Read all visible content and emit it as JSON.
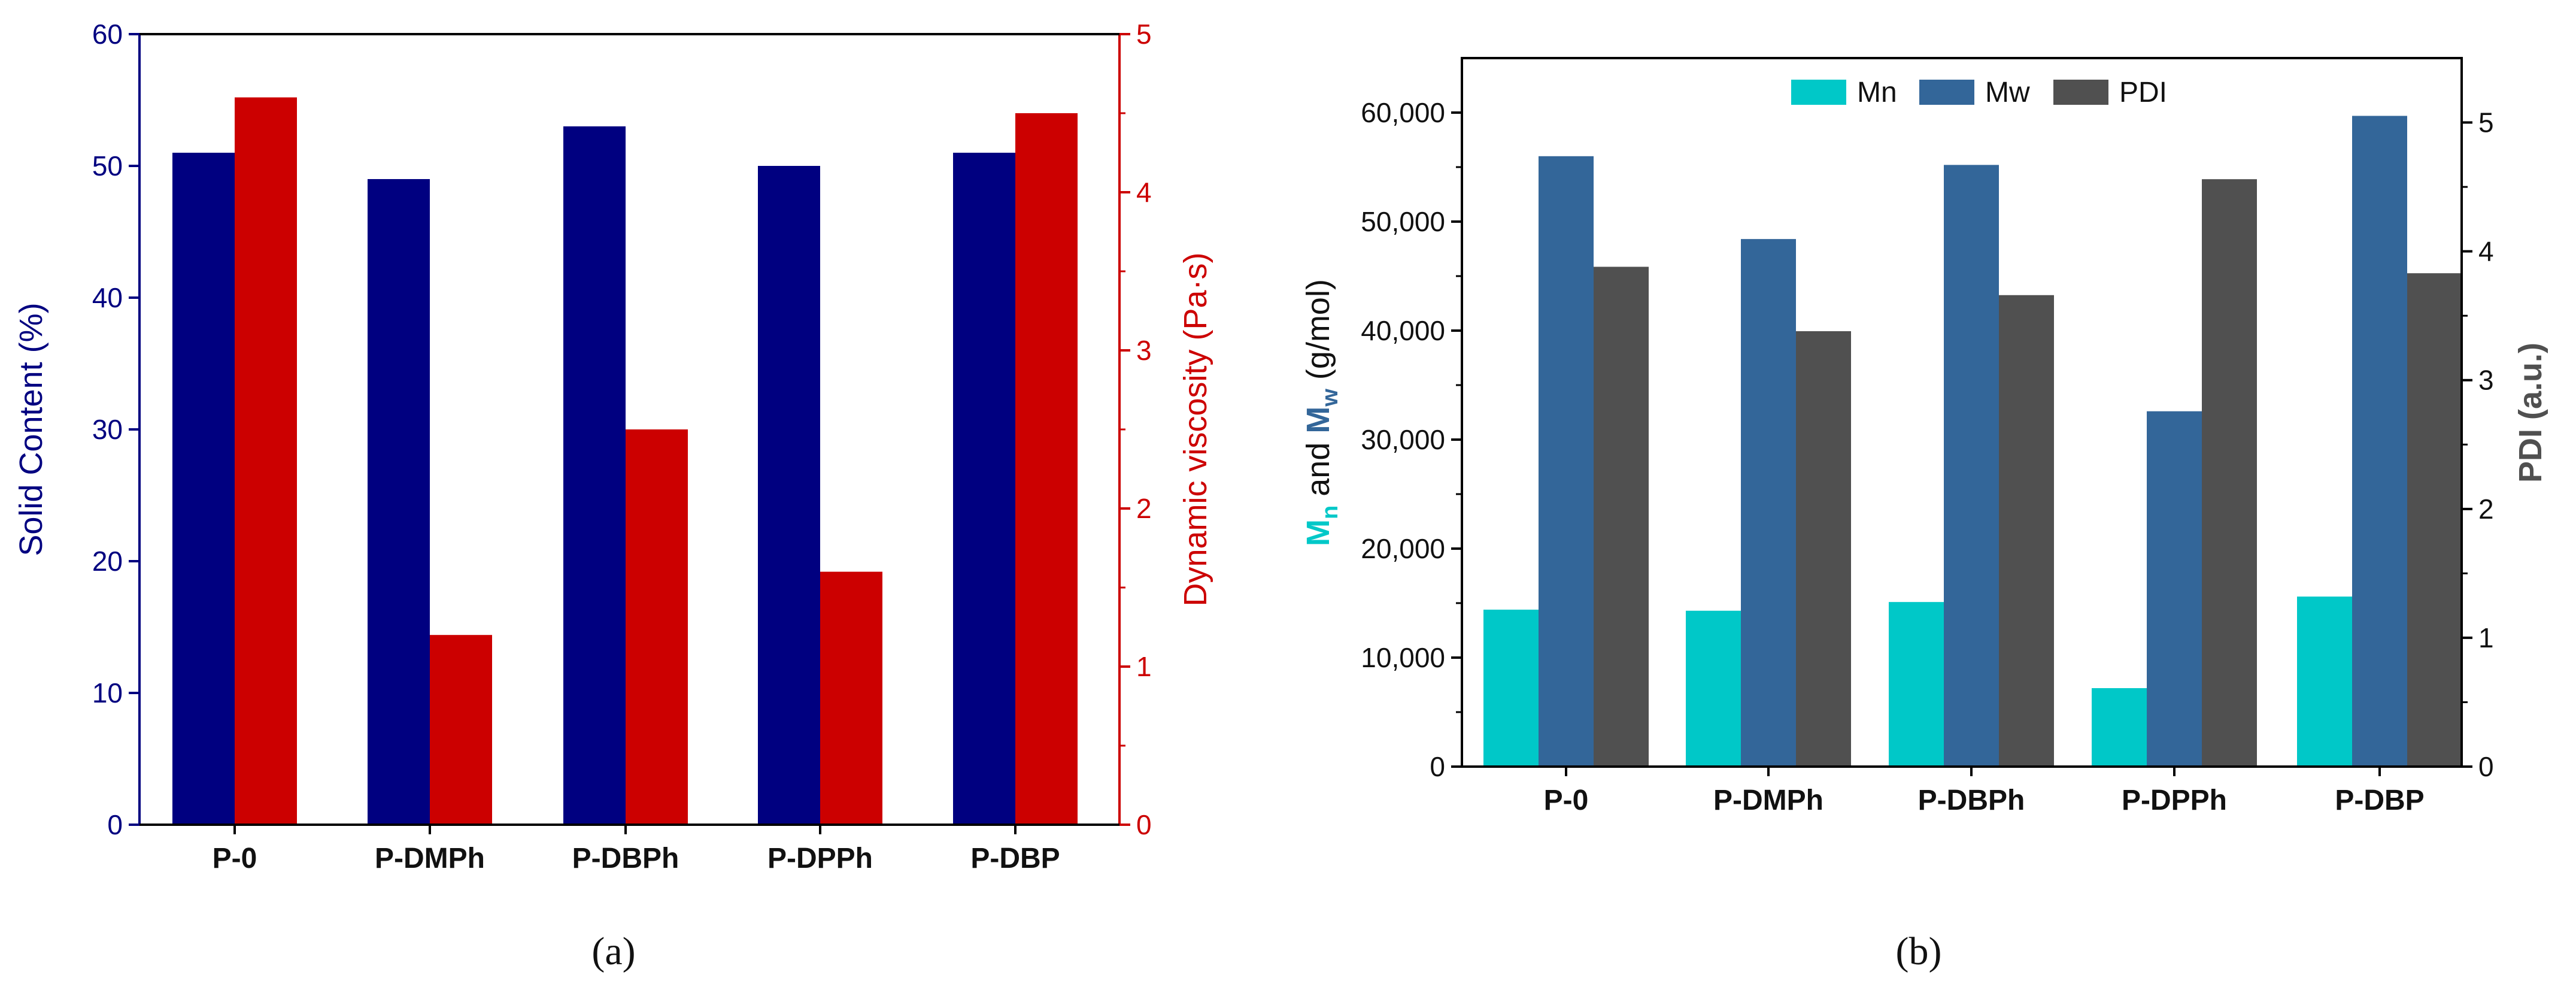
{
  "chart_data": [
    {
      "type": "bar",
      "panel_label": "(a)",
      "categories": [
        "P-0",
        "P-DMPh",
        "P-DBPh",
        "P-DPPh",
        "P-DBP"
      ],
      "ylabel": "Solid Content (%)",
      "ylim": [
        0,
        60
      ],
      "yticks": [
        0,
        10,
        20,
        30,
        40,
        50,
        60
      ],
      "ylabel_right": "Dynamic viscosity (Pa·s)",
      "ylim_right": [
        0,
        5
      ],
      "yticks_right": [
        0,
        1,
        2,
        3,
        4,
        5
      ],
      "series": [
        {
          "values": [
            51,
            49,
            53,
            50,
            51
          ],
          "color": "#000080",
          "axis": "left"
        },
        {
          "values": [
            4.6,
            1.2,
            2.5,
            1.6,
            4.5
          ],
          "color": "#cc0000",
          "axis": "right"
        }
      ],
      "legend": "none",
      "grid": false
    },
    {
      "type": "bar",
      "panel_label": "(b)",
      "categories": [
        "P-0",
        "P-DMPh",
        "P-DBPh",
        "P-DPPh",
        "P-DBP"
      ],
      "ylabel_parts": {
        "mn_main": "M",
        "mn_sub": "n",
        "and": " and ",
        "mw_main": "M",
        "mw_sub": "w",
        "unit": " (g/mol)"
      },
      "ylim": [
        0,
        65000
      ],
      "yticks": [
        "0",
        "10,000",
        "20,000",
        "30,000",
        "40,000",
        "50,000",
        "60,000"
      ],
      "ytick_values": [
        0,
        10000,
        20000,
        30000,
        40000,
        50000,
        60000
      ],
      "ylabel_right": "PDI (a.u.)",
      "ylim_right": [
        0,
        5.5
      ],
      "yticks_right": [
        0,
        1,
        2,
        3,
        4,
        5
      ],
      "series": [
        {
          "name": "Mn",
          "values": [
            14400,
            14300,
            15100,
            7200,
            15600
          ],
          "color": "#00c8c8",
          "axis": "left"
        },
        {
          "name": "Mw",
          "values": [
            56000,
            48400,
            55200,
            32600,
            59700
          ],
          "color": "#336699",
          "axis": "left"
        },
        {
          "name": "PDI",
          "values": [
            3.88,
            3.38,
            3.66,
            4.56,
            3.83
          ],
          "color": "#505050",
          "axis": "right"
        }
      ],
      "legend": "top-center",
      "grid": false
    }
  ]
}
